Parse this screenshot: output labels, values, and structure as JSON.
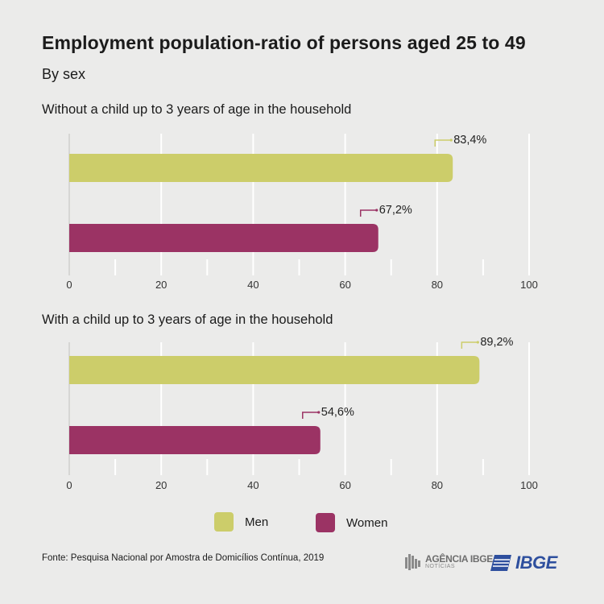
{
  "title": "Employment population-ratio of persons aged 25 to 49",
  "subtitle": "By sex",
  "legend": {
    "men": "Men",
    "women": "Women"
  },
  "footer": {
    "source": "Fonte: Pesquisa Nacional por Amostra de Domicílios Contínua, 2019",
    "agencia_line1": "AGÊNCIA IBGE",
    "agencia_line2": "NOTÍCIAS",
    "ibge": "IBGE"
  },
  "colors": {
    "men": "#cccd6a",
    "women": "#9b3364",
    "background": "#ebebea",
    "grid": "#ffffff"
  },
  "chart_data": [
    {
      "type": "bar",
      "orientation": "horizontal",
      "title": "Without a child up to 3 years of age in the household",
      "xlim": [
        0,
        100
      ],
      "ticks": [
        0,
        20,
        40,
        60,
        80,
        100
      ],
      "series": [
        {
          "name": "Men",
          "value": 83.4,
          "label": "83,4%",
          "color": "#cccd6a"
        },
        {
          "name": "Women",
          "value": 67.2,
          "label": "67,2%",
          "color": "#9b3364"
        }
      ],
      "grid": true
    },
    {
      "type": "bar",
      "orientation": "horizontal",
      "title": "With a child up to 3 years of age in the household",
      "xlim": [
        0,
        100
      ],
      "ticks": [
        0,
        20,
        40,
        60,
        80,
        100
      ],
      "series": [
        {
          "name": "Men",
          "value": 89.2,
          "label": "89,2%",
          "color": "#cccd6a"
        },
        {
          "name": "Women",
          "value": 54.6,
          "label": "54,6%",
          "color": "#9b3364"
        }
      ],
      "grid": true
    }
  ]
}
